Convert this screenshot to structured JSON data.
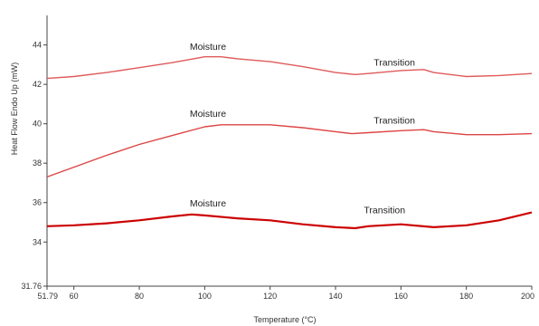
{
  "chart_data": {
    "type": "line",
    "xlabel": "Temperature (°C)",
    "ylabel": "Heat Flow Endo Up (mW)",
    "xlim": [
      51.79,
      200
    ],
    "ylim": [
      31.76,
      45.5
    ],
    "x_tick_labels": [
      "51.79",
      "60",
      "80",
      "100",
      "120",
      "140",
      "160",
      "180",
      "200"
    ],
    "x_tick_values": [
      51.79,
      60,
      80,
      100,
      120,
      140,
      160,
      180,
      200
    ],
    "y_tick_labels": [
      "31.76",
      "34",
      "36",
      "38",
      "40",
      "42",
      "44"
    ],
    "y_tick_values": [
      31.76,
      34,
      36,
      38,
      40,
      42,
      44
    ],
    "colors": {
      "top": "#e05a5a",
      "middle": "#dd4444",
      "bottom": "#cc0000"
    },
    "series": [
      {
        "id": "top",
        "x": [
          51.79,
          60,
          70,
          80,
          90,
          100,
          105,
          110,
          120,
          130,
          140,
          146,
          150,
          160,
          167,
          170,
          180,
          190,
          200
        ],
        "y": [
          42.3,
          42.4,
          42.6,
          42.85,
          43.1,
          43.4,
          43.4,
          43.3,
          43.15,
          42.9,
          42.6,
          42.5,
          42.55,
          42.7,
          42.75,
          42.6,
          42.4,
          42.45,
          42.55
        ]
      },
      {
        "id": "middle",
        "x": [
          51.79,
          60,
          70,
          80,
          90,
          100,
          105,
          110,
          120,
          130,
          140,
          145,
          150,
          160,
          167,
          170,
          180,
          190,
          200
        ],
        "y": [
          37.3,
          37.8,
          38.4,
          38.95,
          39.4,
          39.85,
          39.95,
          39.95,
          39.95,
          39.8,
          39.6,
          39.5,
          39.55,
          39.65,
          39.7,
          39.6,
          39.45,
          39.45,
          39.5
        ]
      },
      {
        "id": "bottom",
        "x": [
          51.79,
          60,
          70,
          80,
          90,
          96,
          100,
          110,
          120,
          130,
          140,
          146,
          150,
          160,
          170,
          180,
          190,
          200
        ],
        "y": [
          34.8,
          34.85,
          34.95,
          35.1,
          35.3,
          35.4,
          35.35,
          35.2,
          35.1,
          34.9,
          34.75,
          34.7,
          34.8,
          34.9,
          34.75,
          34.85,
          35.1,
          35.5
        ]
      }
    ],
    "annotations": [
      {
        "text": "Moisture",
        "x": 101,
        "y": 43.75
      },
      {
        "text": "Transition",
        "x": 158,
        "y": 42.95
      },
      {
        "text": "Moisture",
        "x": 101,
        "y": 40.35
      },
      {
        "text": "Transition",
        "x": 158,
        "y": 40.0
      },
      {
        "text": "Moisture",
        "x": 101,
        "y": 35.8
      },
      {
        "text": "Transition",
        "x": 155,
        "y": 35.45
      }
    ]
  }
}
